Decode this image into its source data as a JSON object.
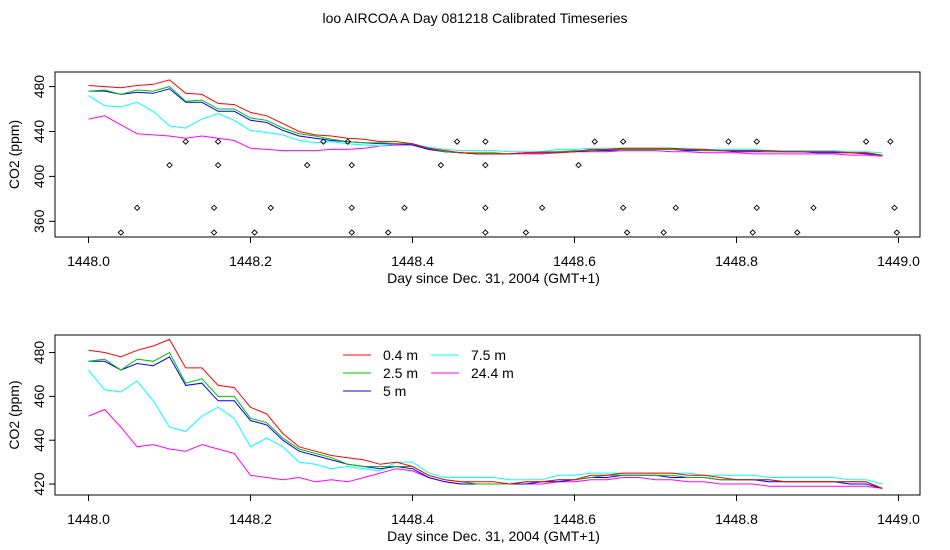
{
  "title": "loo AIRCOA A  Day 081218  Calibrated Timeseries",
  "colors": {
    "s04": "#ff0000",
    "s25": "#00c000",
    "s5": "#0000ff",
    "s75": "#00ffff",
    "s244": "#ff00ff"
  },
  "chart_data": [
    {
      "type": "line",
      "xlabel": "Day since Dec. 31, 2004 (GMT+1)",
      "ylabel": "CO2 (ppm)",
      "xlim": [
        1448.0,
        1449.0
      ],
      "ylim": [
        346,
        493
      ],
      "xticks": [
        "1448.0",
        "1448.2",
        "1448.4",
        "1448.6",
        "1448.8",
        "1449.0"
      ],
      "yticks": [
        "360",
        "400",
        "440",
        "480"
      ],
      "grid": false,
      "legend": null,
      "x": [
        1448.0,
        1448.02,
        1448.04,
        1448.06,
        1448.08,
        1448.1,
        1448.12,
        1448.14,
        1448.16,
        1448.18,
        1448.2,
        1448.22,
        1448.24,
        1448.26,
        1448.28,
        1448.3,
        1448.32,
        1448.34,
        1448.36,
        1448.38,
        1448.4,
        1448.42,
        1448.44,
        1448.46,
        1448.48,
        1448.5,
        1448.52,
        1448.54,
        1448.56,
        1448.58,
        1448.6,
        1448.62,
        1448.64,
        1448.66,
        1448.68,
        1448.7,
        1448.72,
        1448.74,
        1448.76,
        1448.78,
        1448.8,
        1448.82,
        1448.84,
        1448.86,
        1448.88,
        1448.9,
        1448.92,
        1448.94,
        1448.96,
        1448.98
      ],
      "series": [
        {
          "name": "0.4 m",
          "color_key": "s04",
          "values": [
            481,
            480,
            479,
            481,
            482,
            486,
            474,
            473,
            465,
            464,
            457,
            454,
            447,
            440,
            437,
            436,
            434,
            433,
            431,
            431,
            429,
            425,
            423,
            421,
            420,
            420,
            420,
            421,
            421,
            421,
            422,
            424,
            424,
            425,
            425,
            425,
            425,
            424,
            424,
            423,
            423,
            423,
            423,
            422,
            422,
            422,
            422,
            421,
            421,
            419
          ]
        },
        {
          "name": "2.5 m",
          "color_key": "s25",
          "values": [
            476,
            477,
            473,
            477,
            476,
            480,
            467,
            468,
            460,
            460,
            452,
            450,
            443,
            438,
            436,
            433,
            431,
            430,
            430,
            429,
            429,
            425,
            422,
            421,
            421,
            421,
            420,
            421,
            422,
            422,
            423,
            423,
            424,
            424,
            424,
            424,
            424,
            424,
            423,
            423,
            423,
            423,
            422,
            422,
            422,
            422,
            422,
            421,
            421,
            419
          ]
        },
        {
          "name": "5 m",
          "color_key": "s5",
          "values": [
            476,
            476,
            473,
            475,
            474,
            478,
            466,
            466,
            458,
            458,
            450,
            448,
            441,
            436,
            434,
            432,
            431,
            430,
            429,
            429,
            428,
            424,
            422,
            421,
            420,
            420,
            420,
            421,
            421,
            422,
            422,
            423,
            423,
            424,
            424,
            424,
            424,
            423,
            423,
            423,
            422,
            422,
            422,
            422,
            422,
            421,
            421,
            421,
            420,
            419
          ]
        },
        {
          "name": "7.5 m",
          "color_key": "s75",
          "values": [
            472,
            463,
            462,
            466,
            458,
            445,
            443,
            451,
            456,
            450,
            441,
            439,
            437,
            432,
            430,
            431,
            429,
            428,
            427,
            429,
            429,
            426,
            424,
            423,
            423,
            423,
            422,
            422,
            422,
            424,
            424,
            425,
            425,
            425,
            425,
            425,
            425,
            425,
            424,
            424,
            424,
            424,
            423,
            423,
            423,
            423,
            423,
            422,
            422,
            421
          ]
        },
        {
          "name": "24.4 m",
          "color_key": "s244",
          "values": [
            451,
            454,
            446,
            438,
            437,
            436,
            434,
            436,
            434,
            432,
            425,
            424,
            423,
            423,
            423,
            424,
            424,
            425,
            427,
            428,
            428,
            424,
            422,
            421,
            420,
            420,
            420,
            420,
            420,
            421,
            422,
            422,
            422,
            423,
            423,
            423,
            422,
            422,
            421,
            421,
            421,
            420,
            420,
            420,
            420,
            420,
            420,
            419,
            419,
            418
          ]
        }
      ],
      "markers": [
        {
          "x": 1448.04,
          "y": 350
        },
        {
          "x": 1448.06,
          "y": 372
        },
        {
          "x": 1448.1,
          "y": 410
        },
        {
          "x": 1448.12,
          "y": 431
        },
        {
          "x": 1448.155,
          "y": 350
        },
        {
          "x": 1448.155,
          "y": 372
        },
        {
          "x": 1448.16,
          "y": 410
        },
        {
          "x": 1448.16,
          "y": 431
        },
        {
          "x": 1448.205,
          "y": 350
        },
        {
          "x": 1448.225,
          "y": 372
        },
        {
          "x": 1448.27,
          "y": 410
        },
        {
          "x": 1448.29,
          "y": 431
        },
        {
          "x": 1448.32,
          "y": 431
        },
        {
          "x": 1448.325,
          "y": 410
        },
        {
          "x": 1448.325,
          "y": 372
        },
        {
          "x": 1448.325,
          "y": 350
        },
        {
          "x": 1448.37,
          "y": 350
        },
        {
          "x": 1448.39,
          "y": 372
        },
        {
          "x": 1448.435,
          "y": 410
        },
        {
          "x": 1448.455,
          "y": 431
        },
        {
          "x": 1448.49,
          "y": 350
        },
        {
          "x": 1448.49,
          "y": 372
        },
        {
          "x": 1448.49,
          "y": 410
        },
        {
          "x": 1448.49,
          "y": 431
        },
        {
          "x": 1448.54,
          "y": 350
        },
        {
          "x": 1448.56,
          "y": 372
        },
        {
          "x": 1448.605,
          "y": 410
        },
        {
          "x": 1448.625,
          "y": 431
        },
        {
          "x": 1448.66,
          "y": 431
        },
        {
          "x": 1448.66,
          "y": 372
        },
        {
          "x": 1448.665,
          "y": 350
        },
        {
          "x": 1448.71,
          "y": 350
        },
        {
          "x": 1448.725,
          "y": 372
        },
        {
          "x": 1448.79,
          "y": 431
        },
        {
          "x": 1448.82,
          "y": 350
        },
        {
          "x": 1448.825,
          "y": 372
        },
        {
          "x": 1448.825,
          "y": 431
        },
        {
          "x": 1448.875,
          "y": 350
        },
        {
          "x": 1448.895,
          "y": 372
        },
        {
          "x": 1448.96,
          "y": 431
        },
        {
          "x": 1448.99,
          "y": 431
        },
        {
          "x": 1448.995,
          "y": 372
        },
        {
          "x": 1448.998,
          "y": 350
        }
      ]
    },
    {
      "type": "line",
      "xlabel": "Day since Dec. 31, 2004 (GMT+1)",
      "ylabel": "CO2 (ppm)",
      "xlim": [
        1448.0,
        1449.0
      ],
      "ylim": [
        415,
        488
      ],
      "xticks": [
        "1448.0",
        "1448.2",
        "1448.4",
        "1448.6",
        "1448.8",
        "1449.0"
      ],
      "yticks": [
        "420",
        "440",
        "460",
        "480"
      ],
      "grid": false,
      "legend": "top-left",
      "x": [
        1448.0,
        1448.02,
        1448.04,
        1448.06,
        1448.08,
        1448.1,
        1448.12,
        1448.14,
        1448.16,
        1448.18,
        1448.2,
        1448.22,
        1448.24,
        1448.26,
        1448.28,
        1448.3,
        1448.32,
        1448.34,
        1448.36,
        1448.38,
        1448.4,
        1448.42,
        1448.44,
        1448.46,
        1448.48,
        1448.5,
        1448.52,
        1448.54,
        1448.56,
        1448.58,
        1448.6,
        1448.62,
        1448.64,
        1448.66,
        1448.68,
        1448.7,
        1448.72,
        1448.74,
        1448.76,
        1448.78,
        1448.8,
        1448.82,
        1448.84,
        1448.86,
        1448.88,
        1448.9,
        1448.92,
        1448.94,
        1448.96,
        1448.98
      ],
      "series": [
        {
          "name": "0.4 m",
          "color_key": "s04",
          "values": [
            481,
            480,
            478,
            481,
            483,
            486,
            473,
            473,
            465,
            464,
            455,
            452,
            443,
            437,
            435,
            433,
            432,
            431,
            429,
            430,
            428,
            424,
            422,
            421,
            421,
            421,
            420,
            421,
            421,
            422,
            422,
            424,
            424,
            425,
            425,
            425,
            425,
            424,
            424,
            423,
            422,
            422,
            422,
            421,
            421,
            421,
            421,
            421,
            421,
            418
          ]
        },
        {
          "name": "2.5 m",
          "color_key": "s25",
          "values": [
            476,
            477,
            472,
            477,
            476,
            480,
            466,
            468,
            460,
            460,
            450,
            448,
            441,
            436,
            434,
            432,
            429,
            428,
            428,
            428,
            428,
            424,
            422,
            421,
            420,
            420,
            420,
            421,
            421,
            422,
            422,
            423,
            424,
            424,
            424,
            424,
            424,
            423,
            423,
            422,
            422,
            422,
            422,
            421,
            421,
            421,
            421,
            421,
            421,
            418
          ]
        },
        {
          "name": "5 m",
          "color_key": "s5",
          "values": [
            476,
            476,
            472,
            475,
            474,
            478,
            465,
            466,
            458,
            458,
            449,
            447,
            440,
            435,
            433,
            431,
            429,
            428,
            427,
            428,
            427,
            423,
            421,
            420,
            420,
            420,
            420,
            420,
            421,
            421,
            422,
            423,
            423,
            424,
            424,
            424,
            423,
            423,
            423,
            422,
            422,
            422,
            421,
            421,
            421,
            421,
            421,
            420,
            420,
            418
          ]
        },
        {
          "name": "7.5 m",
          "color_key": "s75",
          "values": [
            472,
            463,
            462,
            467,
            458,
            446,
            444,
            451,
            455,
            450,
            437,
            441,
            437,
            430,
            429,
            427,
            428,
            427,
            426,
            430,
            430,
            425,
            423,
            423,
            423,
            423,
            422,
            422,
            422,
            424,
            424,
            425,
            425,
            425,
            425,
            425,
            425,
            425,
            424,
            424,
            424,
            424,
            423,
            423,
            423,
            423,
            423,
            422,
            422,
            420
          ]
        },
        {
          "name": "24.4 m",
          "color_key": "s244",
          "values": [
            451,
            454,
            446,
            437,
            438,
            436,
            435,
            438,
            436,
            434,
            424,
            423,
            422,
            423,
            421,
            422,
            421,
            423,
            425,
            427,
            426,
            423,
            421,
            420,
            420,
            420,
            420,
            420,
            420,
            421,
            421,
            422,
            422,
            423,
            423,
            422,
            422,
            421,
            421,
            420,
            420,
            420,
            419,
            419,
            419,
            419,
            419,
            419,
            419,
            418
          ]
        }
      ],
      "markers": []
    }
  ]
}
